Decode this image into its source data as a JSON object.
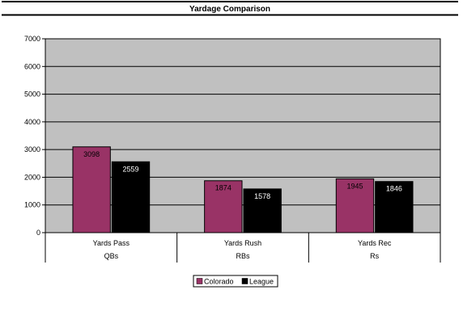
{
  "chart_data": {
    "type": "bar",
    "title": "Yardage Comparison",
    "categories": [
      "Yards Pass",
      "Yards Rush",
      "Yards Rec"
    ],
    "groups": [
      "QBs",
      "RBs",
      "Rs"
    ],
    "series": [
      {
        "name": "Colorado",
        "values": [
          3098,
          1874,
          1945
        ],
        "color": "#993366"
      },
      {
        "name": "League",
        "values": [
          2559,
          1578,
          1846
        ],
        "color": "#000000"
      }
    ],
    "ylim": [
      0,
      7000
    ],
    "yticks": [
      0,
      1000,
      2000,
      3000,
      4000,
      5000,
      6000,
      7000
    ],
    "grid": true,
    "plot_background": "#c0c0c0",
    "legend_position": "bottom-center"
  }
}
